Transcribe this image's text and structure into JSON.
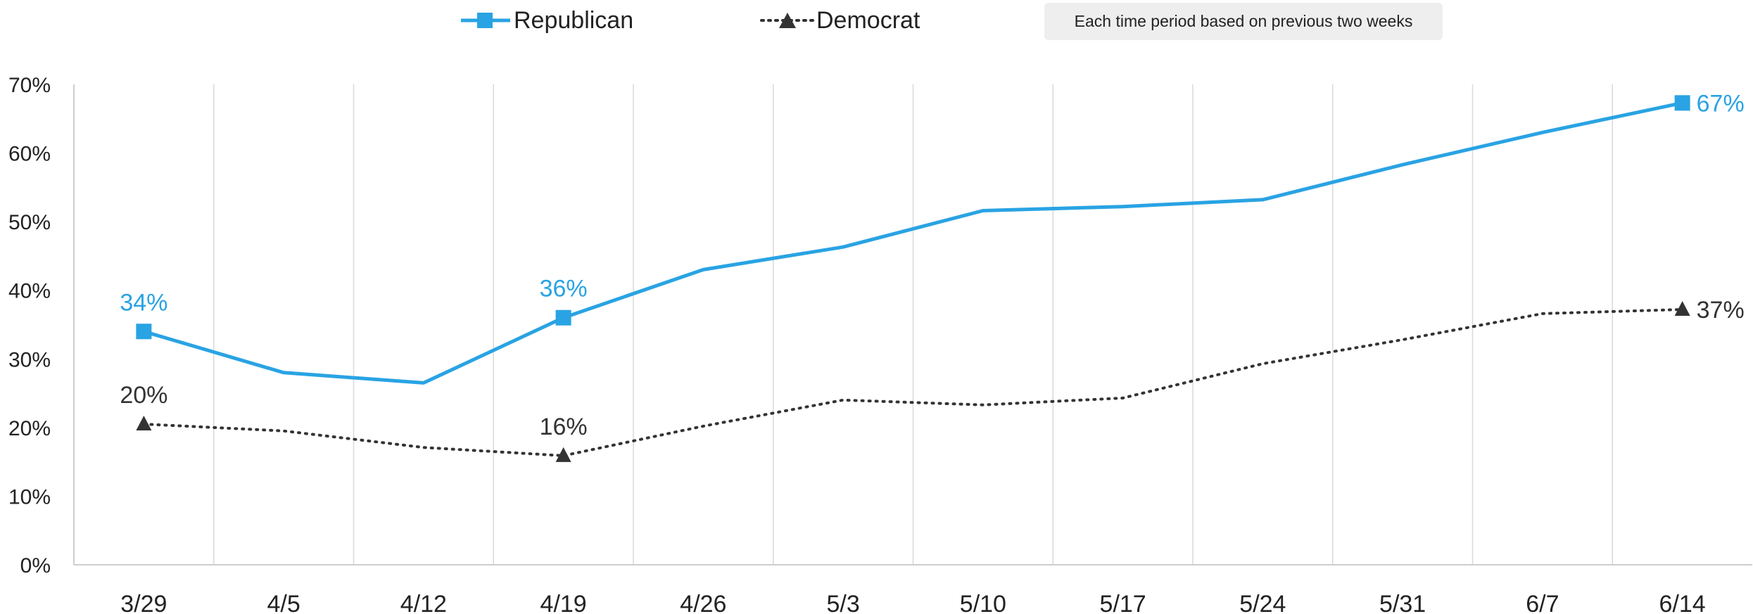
{
  "note": "Each time period based on previous two weeks",
  "legend": {
    "republican": "Republican",
    "democrat": "Democrat"
  },
  "colors": {
    "republican": "#29a3e3",
    "democrat": "#333333",
    "grid": "#d9d9d9",
    "axis": "#bfbfbf",
    "text": "#222222"
  },
  "chart_data": {
    "type": "line",
    "categories": [
      "3/29",
      "4/5",
      "4/12",
      "4/19",
      "4/26",
      "5/3",
      "5/10",
      "5/17",
      "5/24",
      "5/31",
      "6/7",
      "6/14"
    ],
    "ylim": [
      0,
      70
    ],
    "yticks": [
      "0%",
      "10%",
      "20%",
      "30%",
      "40%",
      "50%",
      "60%",
      "70%"
    ],
    "grid": "vertical",
    "legend_position": "top",
    "series": [
      {
        "name": "Republican",
        "values": [
          34,
          28,
          26.5,
          36,
          43,
          46.3,
          51.6,
          52.2,
          53.2,
          58.3,
          63,
          67.3
        ],
        "labels": [
          {
            "index": 0,
            "text": "34%"
          },
          {
            "index": 3,
            "text": "36%"
          },
          {
            "index": 11,
            "text": "67%"
          }
        ]
      },
      {
        "name": "Democrat",
        "values": [
          20.5,
          19.5,
          17.1,
          15.9,
          20.2,
          24,
          23.3,
          24.3,
          29.3,
          32.8,
          36.6,
          37.2
        ],
        "labels": [
          {
            "index": 0,
            "text": "20%"
          },
          {
            "index": 3,
            "text": "16%"
          },
          {
            "index": 11,
            "text": "37%"
          }
        ]
      }
    ]
  }
}
